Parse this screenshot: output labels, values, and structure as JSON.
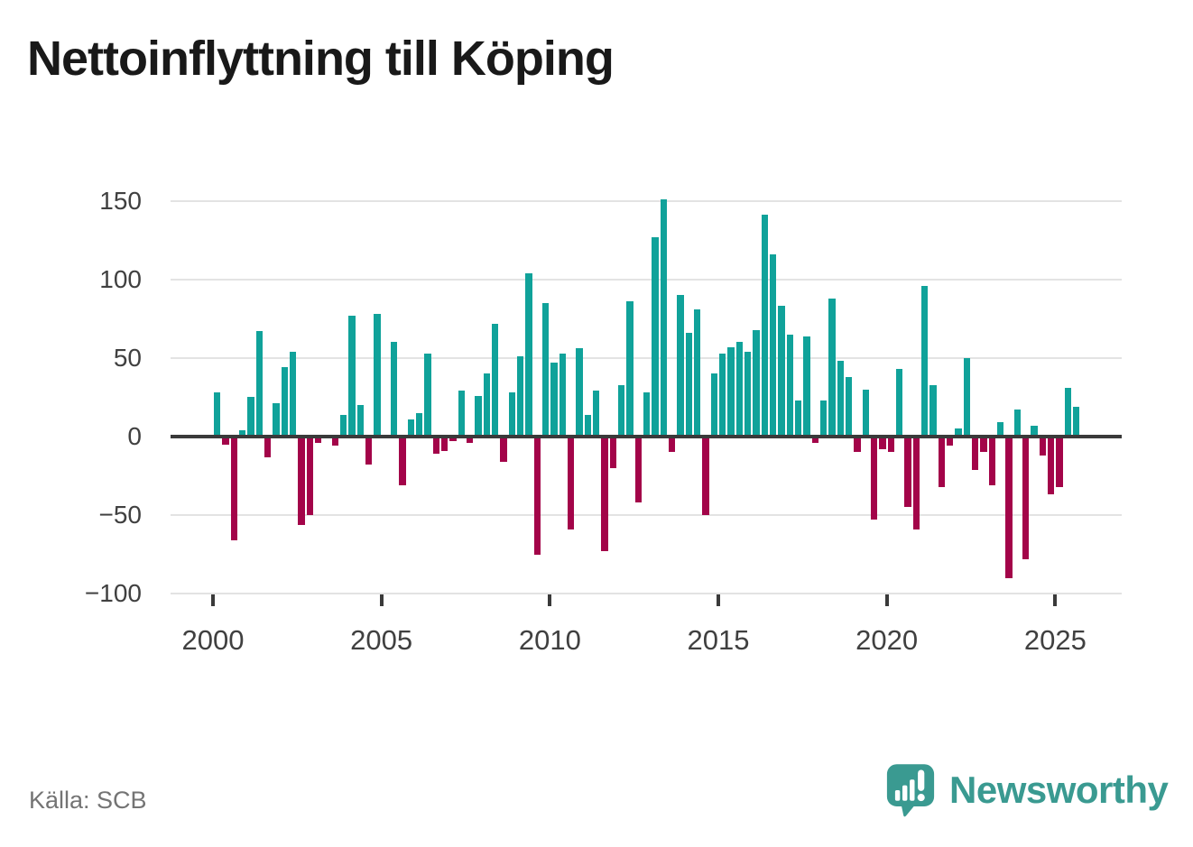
{
  "title": "Nettoinflyttning till Köping",
  "source": "Källa: SCB",
  "brand": {
    "name": "Newsworthy"
  },
  "colors": {
    "positive": "#10A29A",
    "negative": "#A30449",
    "axis": "#3A3A3A",
    "grid": "#E3E3E3",
    "tick_label": "#404040",
    "title": "#191919",
    "source": "#747474",
    "brand": "#3A9A91"
  },
  "chart_data": {
    "type": "bar",
    "title": "Nettoinflyttning till Köping",
    "frequency": "quarterly",
    "start_period": "2000-Q1",
    "end_period": "2025-Q3",
    "xlabel": "",
    "ylabel": "",
    "ylim": [
      -112,
      160
    ],
    "grid": true,
    "values": [
      28,
      -5,
      -66,
      4,
      25,
      67,
      -13,
      21,
      44,
      54,
      -56,
      -50,
      -4,
      0,
      -6,
      14,
      77,
      20,
      -18,
      78,
      0,
      60,
      -31,
      11,
      15,
      53,
      -11,
      -9,
      -3,
      29,
      -4,
      26,
      40,
      72,
      -16,
      28,
      51,
      104,
      -75,
      85,
      47,
      53,
      -59,
      56,
      14,
      29,
      -73,
      -20,
      33,
      86,
      -42,
      28,
      127,
      151,
      -10,
      90,
      66,
      81,
      -50,
      40,
      53,
      57,
      60,
      54,
      68,
      141,
      116,
      83,
      65,
      23,
      64,
      -4,
      23,
      88,
      48,
      38,
      -10,
      30,
      -53,
      -8,
      -10,
      43,
      -45,
      -59,
      96,
      33,
      -32,
      -6,
      5,
      50,
      -21,
      -10,
      -31,
      9,
      -90,
      17,
      -78,
      7,
      -12,
      -37,
      -32,
      31,
      19
    ],
    "y_ticks": [
      {
        "value": 150,
        "label": "150"
      },
      {
        "value": 100,
        "label": "100"
      },
      {
        "value": 50,
        "label": "50"
      },
      {
        "value": 0,
        "label": "0"
      },
      {
        "value": -50,
        "label": "−50"
      },
      {
        "value": -100,
        "label": "−100"
      }
    ],
    "x_ticks": [
      {
        "value": 2000,
        "label": "2000"
      },
      {
        "value": 2005,
        "label": "2005"
      },
      {
        "value": 2010,
        "label": "2010"
      },
      {
        "value": 2015,
        "label": "2015"
      },
      {
        "value": 2020,
        "label": "2020"
      },
      {
        "value": 2025,
        "label": "2025"
      }
    ],
    "legend": null
  }
}
